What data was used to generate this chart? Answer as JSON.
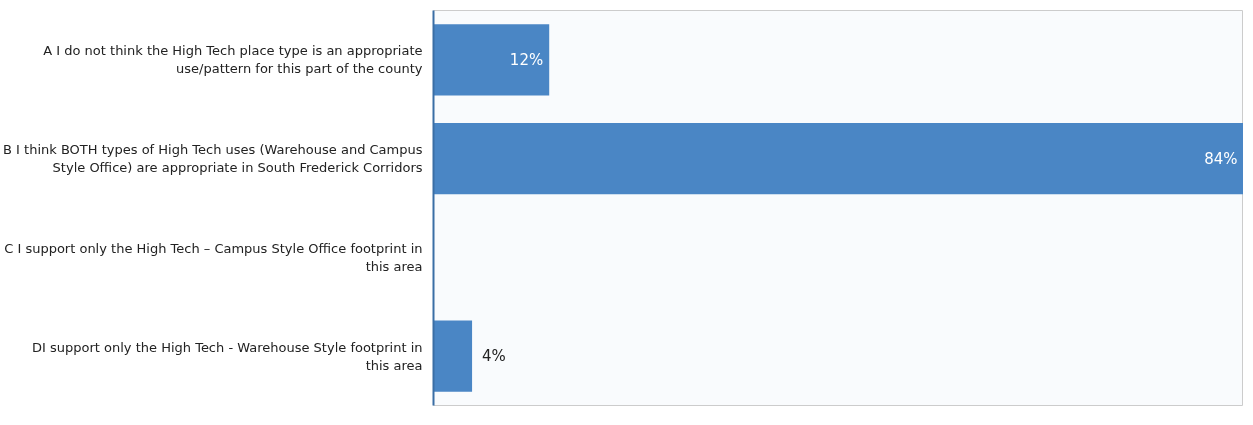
{
  "chart_data": {
    "type": "bar",
    "orientation": "horizontal",
    "color": "#4a86c5",
    "categories": [
      "A I do not think the High Tech place type is an appropriate\nuse/pattern for this part of the county",
      "B I think BOTH types of High Tech uses (Warehouse and Campus\nStyle Office) are appropriate in South Frederick Corridors",
      "C I support only the High Tech – Campus Style Office footprint in\nthis area",
      "DI support only the High Tech - Warehouse Style footprint in\nthis area"
    ],
    "values": [
      12,
      84,
      0,
      4
    ],
    "value_labels": [
      "12%",
      "84%",
      null,
      "4%"
    ],
    "grid": false
  }
}
